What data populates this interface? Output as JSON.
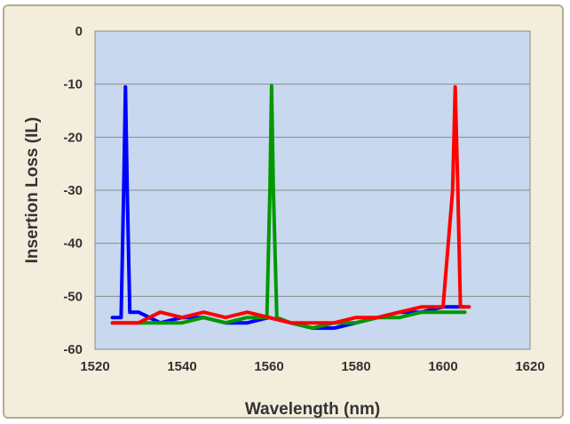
{
  "chart_data": {
    "type": "line",
    "title": "",
    "xlabel": "Wavelength (nm)",
    "ylabel": "Insertion Loss (IL)",
    "xlim": [
      1520,
      1620
    ],
    "ylim": [
      -60,
      0
    ],
    "x_ticks": [
      "1520",
      "1540",
      "1560",
      "1580",
      "1600",
      "1620"
    ],
    "y_ticks": [
      "0",
      "-10",
      "-20",
      "-30",
      "-40",
      "-50",
      "-60"
    ],
    "grid": "horizontal",
    "legend": "none",
    "series": [
      {
        "color": "#0000ff",
        "x": [
          1524,
          1526,
          1526.6,
          1527,
          1527.4,
          1528,
          1530,
          1535,
          1540,
          1545,
          1550,
          1555,
          1560,
          1565,
          1570,
          1575,
          1580,
          1585,
          1590,
          1595,
          1600,
          1605
        ],
        "y": [
          -54,
          -54,
          -30,
          -10.5,
          -30,
          -53,
          -53,
          -55,
          -54,
          -54,
          -55,
          -55,
          -54,
          -55,
          -56,
          -56,
          -55,
          -54,
          -53,
          -53,
          -52,
          -52
        ]
      },
      {
        "color": "#009900",
        "x": [
          1524,
          1530,
          1535,
          1540,
          1545,
          1550,
          1555,
          1559.5,
          1560.2,
          1560.6,
          1561,
          1561.8,
          1565,
          1570,
          1575,
          1580,
          1585,
          1590,
          1595,
          1600,
          1605
        ],
        "y": [
          -55,
          -55,
          -55,
          -55,
          -54,
          -55,
          -54,
          -54,
          -30,
          -10.3,
          -30,
          -54,
          -55,
          -56,
          -55,
          -55,
          -54,
          -54,
          -53,
          -53,
          -53
        ]
      },
      {
        "color": "#ff0000",
        "x": [
          1524,
          1530,
          1535,
          1540,
          1545,
          1550,
          1555,
          1560,
          1565,
          1570,
          1575,
          1580,
          1585,
          1590,
          1595,
          1600,
          1602.2,
          1602.8,
          1603.4,
          1604,
          1606
        ],
        "y": [
          -55,
          -55,
          -53,
          -54,
          -53,
          -54,
          -53,
          -54,
          -55,
          -55,
          -55,
          -54,
          -54,
          -53,
          -52,
          -52,
          -30,
          -10.5,
          -30,
          -52,
          -52
        ]
      }
    ]
  }
}
